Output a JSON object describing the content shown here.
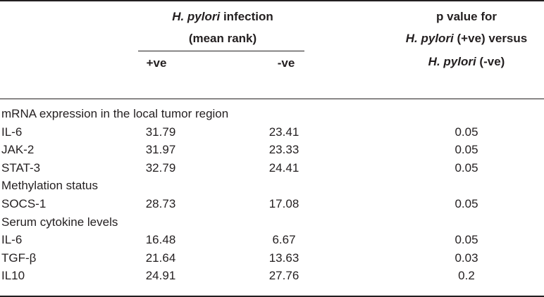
{
  "header": {
    "group": {
      "italic": "H. pylori",
      "text": "infection",
      "line2": "(mean rank)"
    },
    "pos": "+ve",
    "neg": "-ve",
    "p": {
      "line1": "p value for",
      "line2_italic": "H. pylori",
      "line2": "(+ve) versus",
      "line3_italic": "H. pylori",
      "line3": "(-ve)"
    }
  },
  "sections": [
    {
      "title": "mRNA expression in the local tumor region",
      "rows": [
        [
          "IL-6",
          "31.79",
          "23.41",
          "0.05"
        ],
        [
          "JAK-2",
          "31.97",
          "23.33",
          "0.05"
        ],
        [
          "STAT-3",
          "32.79",
          "24.41",
          "0.05"
        ]
      ]
    },
    {
      "title": "Methylation status",
      "rows": [
        [
          "SOCS-1",
          "28.73",
          "17.08",
          "0.05"
        ]
      ]
    },
    {
      "title": "Serum cytokine levels",
      "rows": [
        [
          "IL-6",
          "16.48",
          "6.67",
          "0.05"
        ],
        [
          "TGF-β",
          "21.64",
          "13.63",
          "0.03"
        ],
        [
          "IL10",
          "24.91",
          "27.76",
          "0.2"
        ]
      ]
    }
  ]
}
